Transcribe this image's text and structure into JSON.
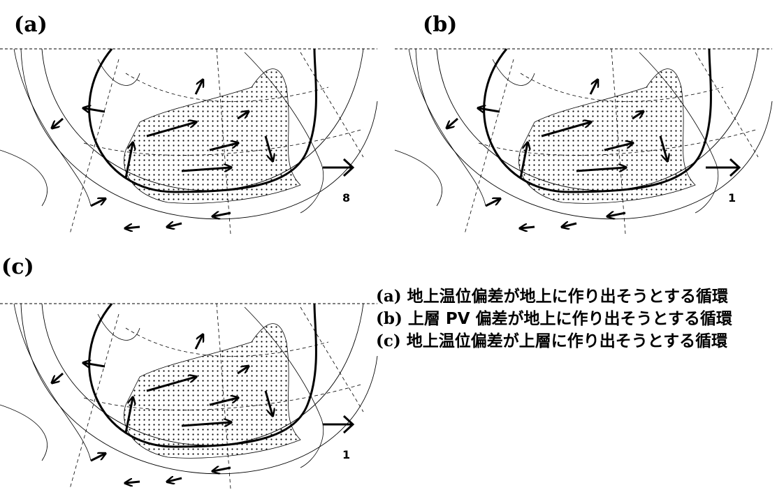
{
  "panels": [
    {
      "label": "(a)",
      "scale_label": "8"
    },
    {
      "label": "(b)",
      "scale_label": "1"
    },
    {
      "label": "(c)",
      "scale_label": "1"
    }
  ],
  "legend": [
    {
      "label": "(a)",
      "text": "地上温位偏差が地上に作り出そうとする循環"
    },
    {
      "label": "(b)",
      "text": "上層 PV 偏差が地上に作り出そうとする循環"
    },
    {
      "label": "(c)",
      "text": "地上温位偏差が上層に作り出そうとする循環"
    }
  ]
}
